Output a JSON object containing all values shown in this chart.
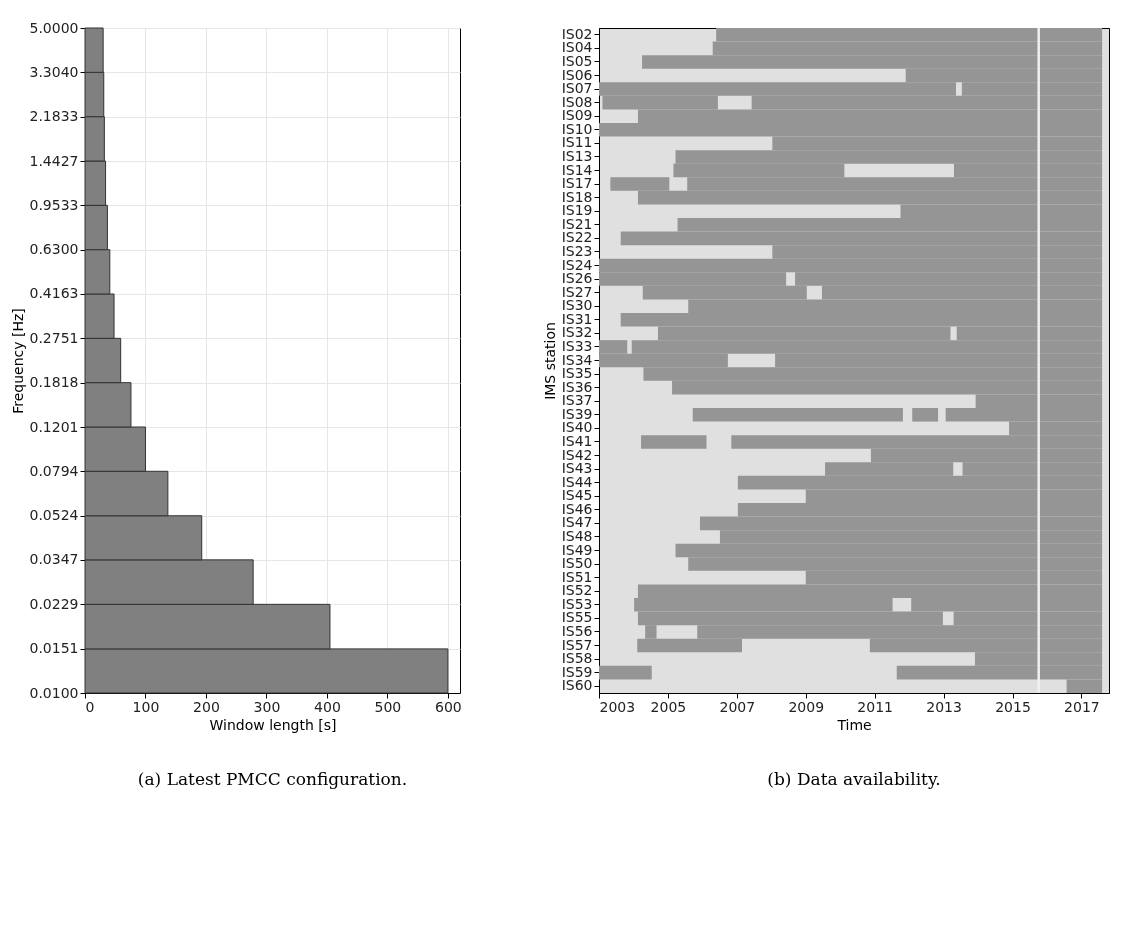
{
  "chart_data": [
    {
      "type": "histogram",
      "orientation": "horizontal",
      "title": "(a) Latest PMCC configuration.",
      "xlabel": "Window length [s]",
      "ylabel": "Frequency [Hz]",
      "log": "y",
      "grid": true,
      "color": "#808080",
      "bins": [
        0.01,
        0.0151,
        0.0229,
        0.0347,
        0.0524,
        0.0794,
        0.1201,
        0.1818,
        0.2751,
        0.4163,
        0.63,
        0.9533,
        1.4427,
        2.1833,
        3.304,
        5.0
      ],
      "values": [
        600,
        405,
        278,
        193,
        137,
        100,
        76,
        59,
        48,
        41,
        37,
        34,
        32,
        31,
        30
      ],
      "xlim": [
        0,
        620
      ],
      "xticks": [
        0,
        100,
        200,
        300,
        400,
        500,
        600
      ],
      "ylim": [
        0.01,
        5.0
      ],
      "yticks": [
        {
          "value": 0.01,
          "label": "0.0100"
        },
        0.0151,
        0.0229,
        0.0347,
        0.0524,
        0.0794,
        0.1201,
        0.1818,
        0.2751,
        0.4163,
        {
          "value": 0.63,
          "label": "0.6300"
        },
        0.9533,
        1.4427,
        2.1833,
        {
          "value": 3.304,
          "label": "3.3040"
        },
        {
          "value": 5.0,
          "label": "5.0000"
        }
      ]
    },
    {
      "type": "bar",
      "orientation": "horizontal",
      "title": "(b) Data availability.",
      "xlabel": "Time",
      "ylabel": "IMS station",
      "categories": [
        "IS02",
        "IS04",
        "IS05",
        "IS06",
        "IS07",
        "IS08",
        "IS09",
        "IS10",
        "IS11",
        "IS13",
        "IS14",
        "IS17",
        "IS18",
        "IS19",
        "IS21",
        "IS22",
        "IS23",
        "IS24",
        "IS26",
        "IS27",
        "IS30",
        "IS31",
        "IS32",
        "IS33",
        "IS34",
        "IS35",
        "IS36",
        "IS37",
        "IS39",
        "IS40",
        "IS41",
        "IS42",
        "IS43",
        "IS44",
        "IS45",
        "IS46",
        "IS47",
        "IS48",
        "IS49",
        "IS50",
        "IS51",
        "IS52",
        "IS53",
        "IS55",
        "IS56",
        "IS57",
        "IS58",
        "IS59",
        "IS60"
      ],
      "series": [
        {
          "color": "#959595",
          "base": [
            2006.4,
            2006.3,
            2004.25,
            2011.9,
            2003,
            2003.1,
            2004.13,
            2003,
            2008.03,
            2005.22,
            2005.16,
            2003.33,
            2004.13,
            2011.75,
            2005.28,
            2003.63,
            2008.03,
            2003,
            2003,
            2004.27,
            2005.59,
            2003.63,
            2004.71,
            2003,
            2003,
            2004.29,
            2005.12,
            2013.93,
            2005.72,
            2014.9,
            2004.22,
            2010.89,
            2009.56,
            2007.03,
            2009.0,
            2007.03,
            2005.93,
            2006.51,
            2005.22,
            2005.59,
            2009.0,
            2004.13,
            2004.02,
            2004.13,
            2004.34,
            2004.11,
            2013.91,
            2003,
            2016.57
          ],
          "values": [
            11.2,
            11.3,
            13.35,
            5.7,
            10.36,
            3.35,
            13.47,
            14.6,
            9.57,
            12.38,
            4.96,
            1.71,
            13.47,
            5.85,
            12.32,
            13.97,
            9.57,
            14.6,
            5.43,
            4.76,
            12.01,
            13.97,
            8.49,
            0.82,
            3.74,
            13.31,
            12.48,
            3.67,
            6.1,
            2.7,
            1.9,
            6.71,
            3.72,
            10.57,
            8.6,
            10.57,
            11.67,
            11.09,
            12.38,
            12.01,
            8.6,
            13.47,
            7.5,
            8.85,
            0.33,
            3.04,
            3.69,
            1.53,
            1.03
          ]
        },
        {
          "color": "#959595",
          "base": [
            null,
            null,
            null,
            null,
            2013.53,
            2007.43,
            null,
            null,
            null,
            null,
            2013.3,
            2005.56,
            null,
            null,
            null,
            null,
            null,
            null,
            2008.69,
            2009.47,
            null,
            null,
            2013.38,
            2003.95,
            2008.11,
            null,
            null,
            null,
            2012.09,
            null,
            2006.84,
            null,
            2013.55,
            null,
            null,
            null,
            null,
            null,
            null,
            null,
            null,
            null,
            2012.06,
            2013.29,
            2005.85,
            2010.86,
            null,
            2011.64,
            null
          ],
          "values": [
            null,
            null,
            null,
            null,
            4.07,
            10.17,
            null,
            null,
            null,
            null,
            4.3,
            12.04,
            null,
            null,
            null,
            null,
            null,
            null,
            8.91,
            8.13,
            null,
            null,
            4.22,
            13.65,
            9.49,
            null,
            null,
            null,
            0.75,
            null,
            10.76,
            null,
            4.05,
            null,
            null,
            null,
            null,
            null,
            null,
            null,
            null,
            null,
            5.54,
            4.31,
            11.75,
            6.74,
            null,
            5.96,
            null
          ]
        },
        {
          "color": "#959595",
          "base": [
            null,
            null,
            null,
            null,
            null,
            null,
            null,
            null,
            null,
            null,
            null,
            null,
            null,
            null,
            null,
            null,
            null,
            null,
            null,
            null,
            null,
            null,
            null,
            null,
            null,
            null,
            null,
            null,
            2013.06,
            null,
            null,
            null,
            null,
            null,
            null,
            null,
            null,
            null,
            null,
            null,
            null,
            null,
            null,
            null,
            null,
            null,
            null,
            null,
            null
          ],
          "values": [
            null,
            null,
            null,
            null,
            null,
            null,
            null,
            null,
            null,
            null,
            null,
            null,
            null,
            null,
            null,
            null,
            null,
            null,
            null,
            null,
            null,
            null,
            null,
            null,
            null,
            null,
            null,
            null,
            4.54,
            null,
            null,
            null,
            null,
            null,
            null,
            null,
            null,
            null,
            null,
            null,
            null,
            null,
            null,
            null,
            null,
            null,
            null,
            null,
            null
          ]
        }
      ],
      "xlim": [
        2003,
        2017.8
      ],
      "xticks": [
        2003,
        2005,
        2007,
        2009,
        2011,
        2013,
        2015,
        2017
      ],
      "ref_lines": [
        {
          "axis": "x",
          "value": 2015.76,
          "color": "#f0f0f0"
        }
      ]
    }
  ]
}
